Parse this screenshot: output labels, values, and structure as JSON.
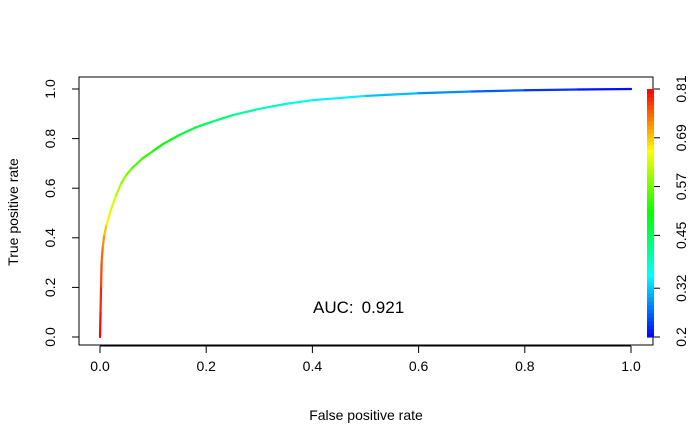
{
  "chart_data": {
    "type": "line",
    "title": "",
    "xlabel": "False positive rate",
    "ylabel": "True positive rate",
    "xlim": [
      0,
      1
    ],
    "ylim": [
      0,
      1
    ],
    "x_ticks": [
      "0.0",
      "0.2",
      "0.4",
      "0.6",
      "0.8",
      "1.0"
    ],
    "y_ticks": [
      "0.0",
      "0.2",
      "0.4",
      "0.6",
      "0.8",
      "1.0"
    ],
    "grid": false,
    "legend": "none",
    "annotation": {
      "label": "AUC:",
      "value": "0.921",
      "x": 0.5,
      "y": 0.15
    },
    "series": [
      {
        "x": [
          0,
          0.001,
          0.002,
          0.003,
          0.005,
          0.008,
          0.012,
          0.02,
          0.03,
          0.04,
          0.05,
          0.06,
          0.08,
          0.1,
          0.12,
          0.15,
          0.18,
          0.2,
          0.25,
          0.3,
          0.35,
          0.4,
          0.5,
          0.6,
          0.7,
          0.8,
          0.9,
          1.0
        ],
        "y": [
          0,
          0.1,
          0.2,
          0.3,
          0.36,
          0.41,
          0.45,
          0.51,
          0.57,
          0.62,
          0.655,
          0.68,
          0.72,
          0.75,
          0.78,
          0.815,
          0.845,
          0.86,
          0.895,
          0.92,
          0.94,
          0.955,
          0.972,
          0.983,
          0.99,
          0.995,
          0.998,
          1.0
        ],
        "cutoff": [
          0.81,
          0.8,
          0.78,
          0.76,
          0.74,
          0.71,
          0.68,
          0.65,
          0.62,
          0.6,
          0.58,
          0.56,
          0.54,
          0.52,
          0.5,
          0.48,
          0.46,
          0.45,
          0.42,
          0.4,
          0.38,
          0.36,
          0.33,
          0.3,
          0.27,
          0.24,
          0.22,
          0.2
        ]
      }
    ],
    "colorbar": {
      "min": 0.2,
      "max": 0.81,
      "ticks": [
        "0.2",
        "0.32",
        "0.45",
        "0.57",
        "0.69",
        "0.81"
      ],
      "tick_values": [
        0.2,
        0.32,
        0.45,
        0.57,
        0.69,
        0.81
      ],
      "colormap": "rainbow (blue to red)"
    }
  }
}
